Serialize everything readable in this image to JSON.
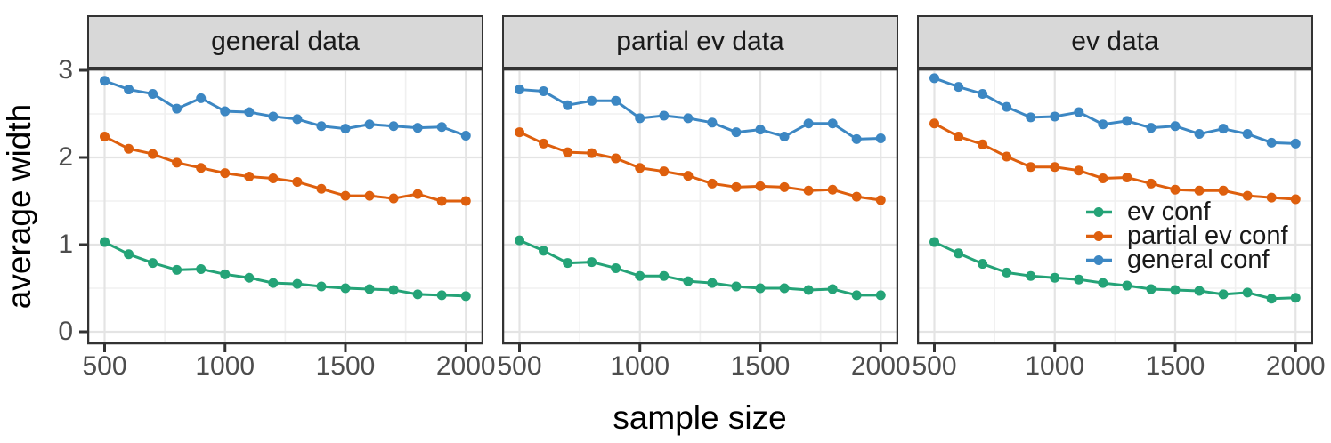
{
  "chart_data": {
    "type": "line",
    "title": "",
    "xlabel": "sample size",
    "ylabel": "average width",
    "x": [
      500,
      600,
      700,
      800,
      900,
      1000,
      1100,
      1200,
      1300,
      1400,
      1500,
      1600,
      1700,
      1800,
      1900,
      2000
    ],
    "x_ticks": [
      500,
      1000,
      1500,
      2000
    ],
    "y_ticks": [
      0,
      1,
      2,
      3
    ],
    "xlim": [
      428,
      2077
    ],
    "ylim": [
      -0.14,
      3.02
    ],
    "grid": "major and minor, light gray on white, dark panel border",
    "legend_position": "inside right of third facet",
    "colors": {
      "ev conf": "#24a377",
      "partial ev conf": "#de5f0d",
      "general conf": "#3c87c3",
      "strip_fill": "#d8d8d8",
      "panel_border": "#333333",
      "grid_major": "#e4e4e4",
      "grid_minor": "#f0f0f0",
      "tick_text": "#4d4d4d"
    },
    "legend": [
      {
        "label": "ev conf",
        "color": "#24a377"
      },
      {
        "label": "partial ev conf",
        "color": "#de5f0d"
      },
      {
        "label": "general conf",
        "color": "#3c87c3"
      }
    ],
    "facets": [
      {
        "label": "general data",
        "series": [
          {
            "name": "ev conf",
            "values": [
              1.03,
              0.89,
              0.79,
              0.71,
              0.72,
              0.66,
              0.62,
              0.56,
              0.55,
              0.52,
              0.5,
              0.49,
              0.48,
              0.43,
              0.42,
              0.41
            ]
          },
          {
            "name": "partial ev conf",
            "values": [
              2.24,
              2.1,
              2.04,
              1.94,
              1.88,
              1.82,
              1.78,
              1.76,
              1.72,
              1.64,
              1.56,
              1.56,
              1.53,
              1.58,
              1.5,
              1.5
            ]
          },
          {
            "name": "general conf",
            "values": [
              2.88,
              2.78,
              2.73,
              2.56,
              2.68,
              2.53,
              2.52,
              2.47,
              2.44,
              2.36,
              2.33,
              2.38,
              2.36,
              2.34,
              2.35,
              2.25
            ]
          }
        ]
      },
      {
        "label": "partial ev data",
        "series": [
          {
            "name": "ev conf",
            "values": [
              1.05,
              0.93,
              0.79,
              0.8,
              0.73,
              0.64,
              0.64,
              0.58,
              0.56,
              0.52,
              0.5,
              0.5,
              0.48,
              0.49,
              0.42,
              0.42
            ]
          },
          {
            "name": "partial ev conf",
            "values": [
              2.29,
              2.16,
              2.06,
              2.05,
              1.99,
              1.88,
              1.84,
              1.79,
              1.7,
              1.66,
              1.67,
              1.66,
              1.62,
              1.63,
              1.55,
              1.51
            ]
          },
          {
            "name": "general conf",
            "values": [
              2.78,
              2.76,
              2.6,
              2.65,
              2.65,
              2.45,
              2.48,
              2.45,
              2.4,
              2.29,
              2.32,
              2.24,
              2.39,
              2.39,
              2.21,
              2.22
            ]
          }
        ]
      },
      {
        "label": "ev data",
        "series": [
          {
            "name": "ev conf",
            "values": [
              1.03,
              0.9,
              0.78,
              0.68,
              0.64,
              0.62,
              0.6,
              0.56,
              0.53,
              0.49,
              0.48,
              0.47,
              0.43,
              0.45,
              0.38,
              0.39
            ]
          },
          {
            "name": "partial ev conf",
            "values": [
              2.39,
              2.24,
              2.15,
              2.01,
              1.89,
              1.89,
              1.85,
              1.76,
              1.77,
              1.7,
              1.63,
              1.62,
              1.62,
              1.56,
              1.54,
              1.52
            ]
          },
          {
            "name": "general conf",
            "values": [
              2.91,
              2.81,
              2.73,
              2.58,
              2.46,
              2.47,
              2.52,
              2.38,
              2.42,
              2.34,
              2.36,
              2.27,
              2.33,
              2.27,
              2.17,
              2.16
            ]
          }
        ]
      }
    ]
  }
}
